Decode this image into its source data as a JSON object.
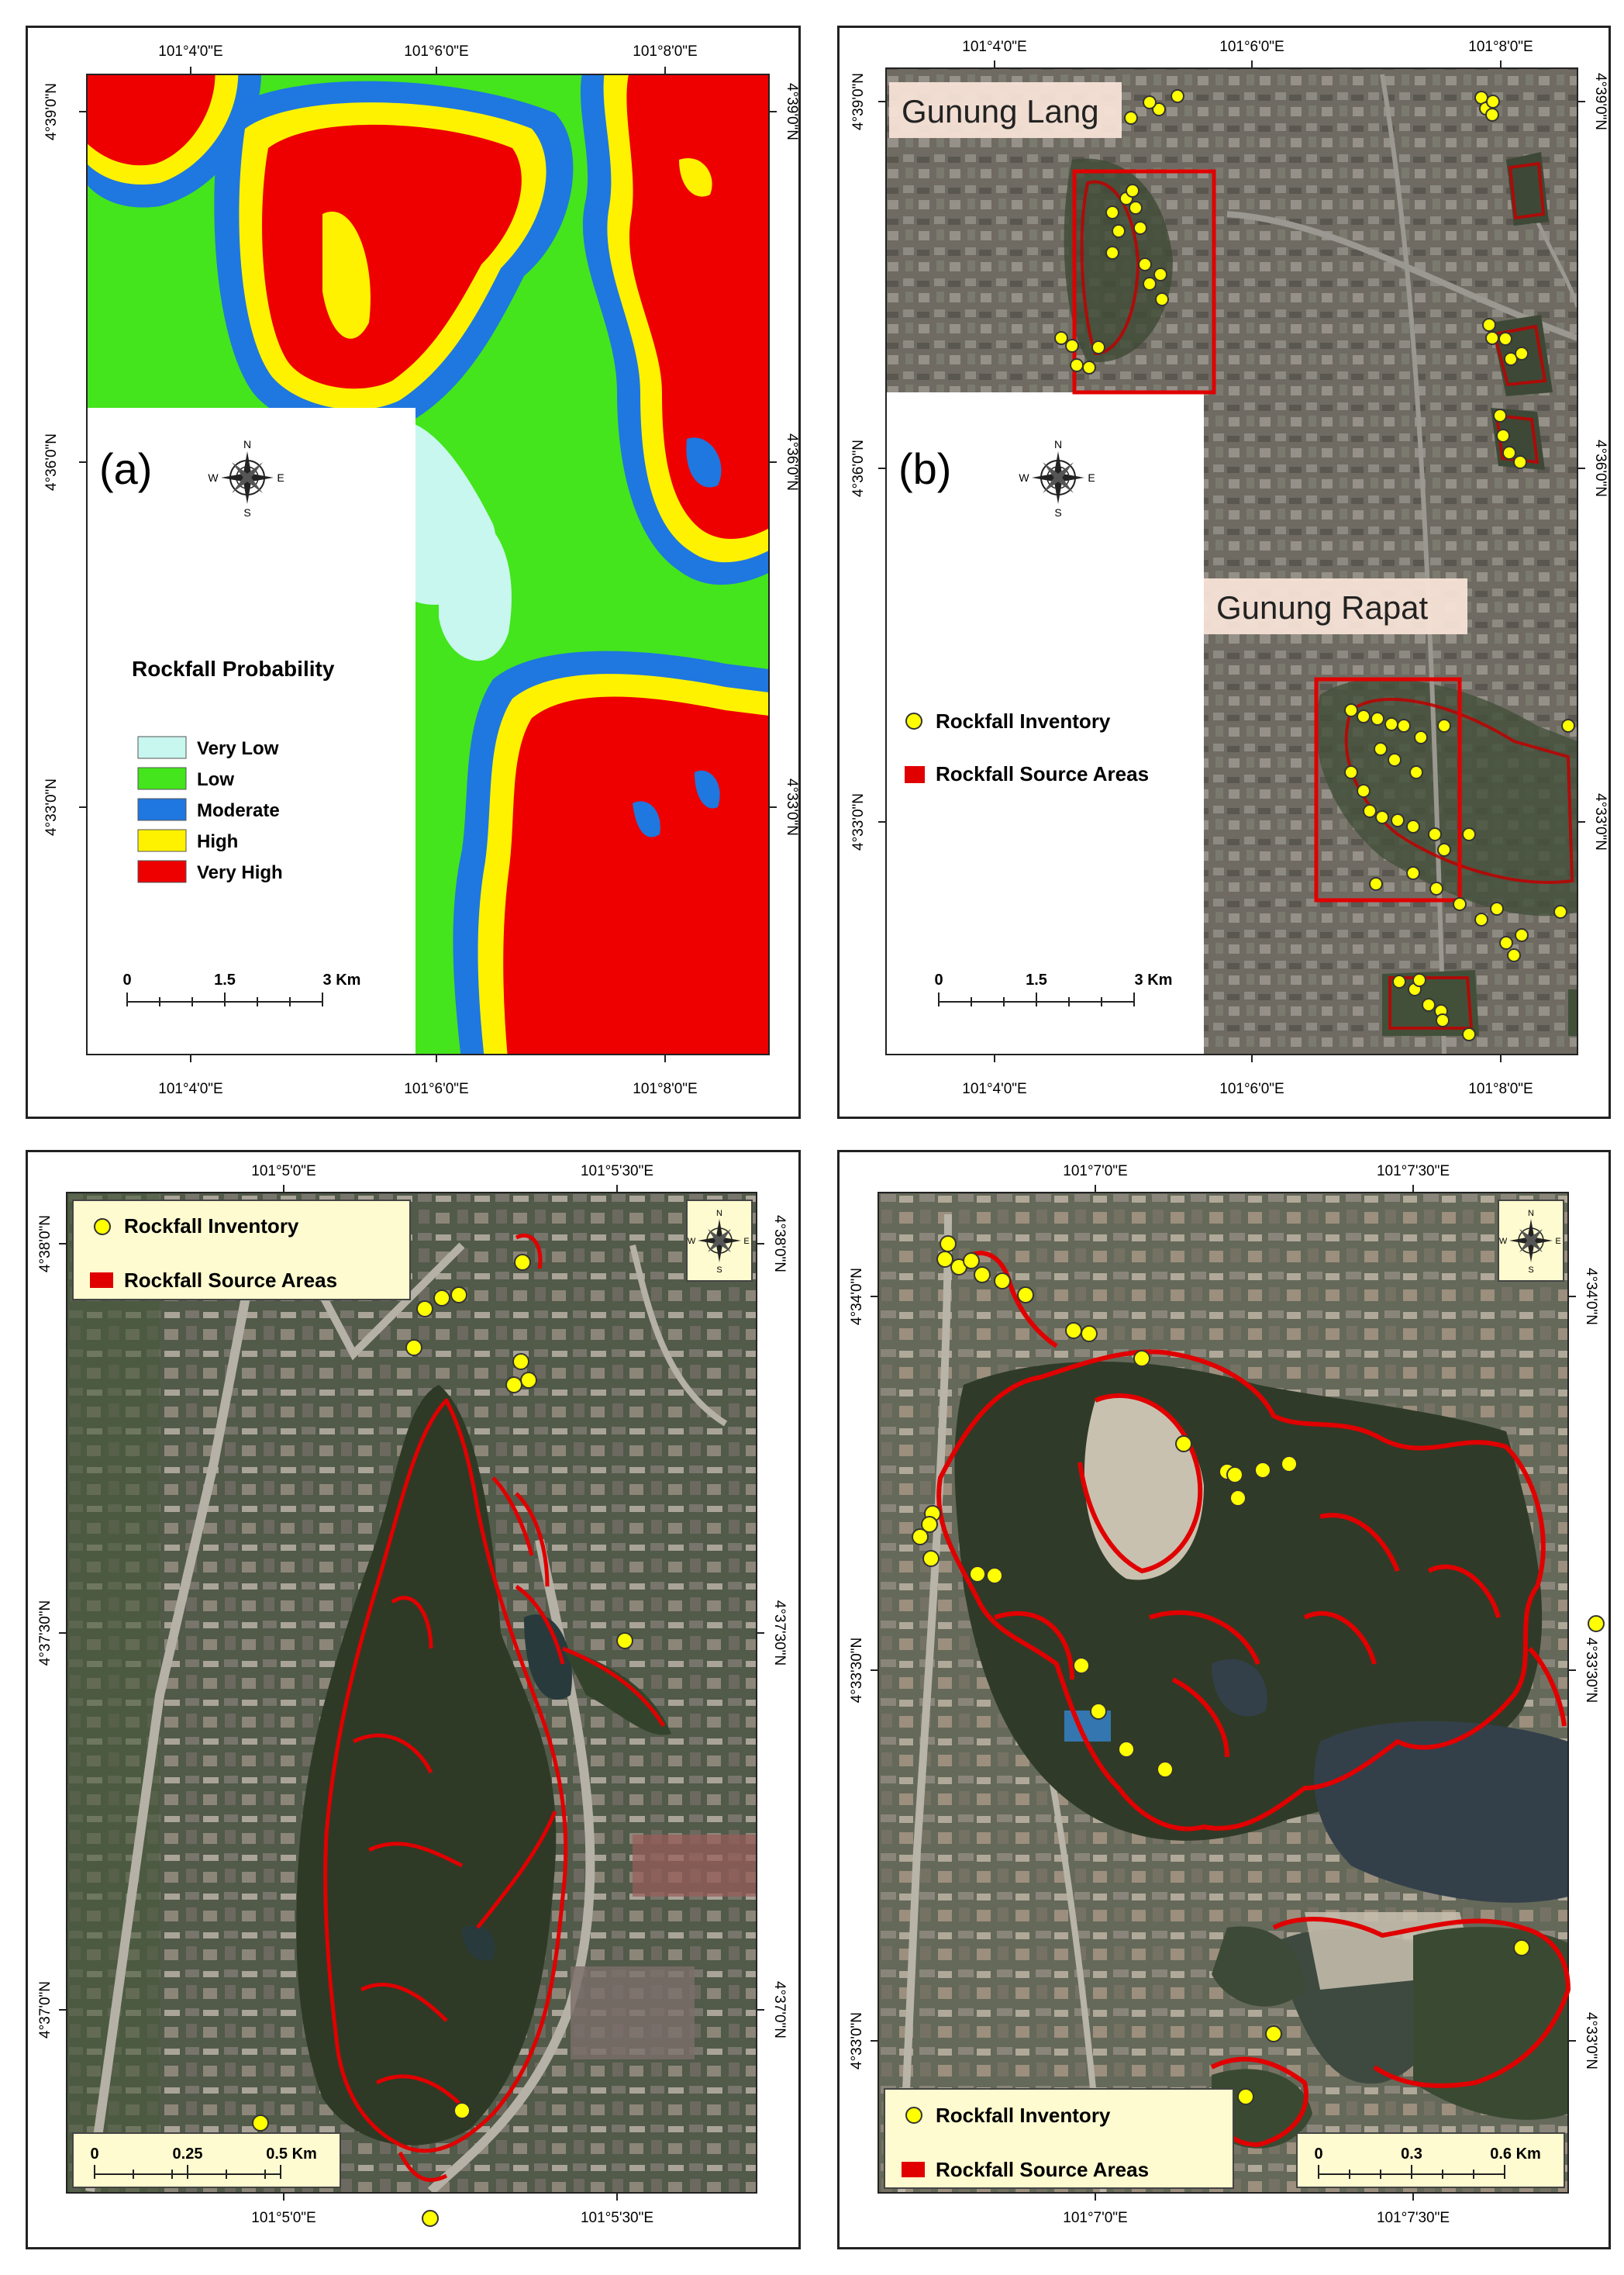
{
  "panel_a": {
    "label": "(a)",
    "legend_title": "Rockfall Probability",
    "classes": [
      {
        "name": "Very Low",
        "color": "#c7f7ee"
      },
      {
        "name": "Low",
        "color": "#44e51c"
      },
      {
        "name": "Moderate",
        "color": "#1f77e0"
      },
      {
        "name": "High",
        "color": "#fff200"
      },
      {
        "name": "Very High",
        "color": "#ee0000"
      }
    ],
    "lon_top": [
      "101°4'0\"E",
      "101°6'0\"E",
      "101°8'0\"E"
    ],
    "lon_bottom": [
      "101°4'0\"E",
      "101°6'0\"E",
      "101°8'0\"E"
    ],
    "lat_left": [
      "4°39'0\"N",
      "4°36'0\"N",
      "4°33'0\"N"
    ],
    "lat_right": [
      "4°39'0\"N",
      "4°36'0\"N",
      "4°33'0\"N"
    ],
    "scale": [
      "0",
      "1.5",
      "3 Km"
    ]
  },
  "panel_b": {
    "label": "(b)",
    "place_1": "Gunung Lang",
    "place_2": "Gunung Rapat",
    "legend_inventory": "Rockfall Inventory",
    "legend_source": "Rockfall Source Areas",
    "lon_top": [
      "101°4'0\"E",
      "101°6'0\"E",
      "101°8'0\"E"
    ],
    "lon_bottom": [
      "101°4'0\"E",
      "101°6'0\"E",
      "101°8'0\"E"
    ],
    "lat_left": [
      "4°39'0\"N",
      "4°36'0\"N",
      "4°33'0\"N"
    ],
    "lat_right": [
      "4°39'0\"N",
      "4°36'0\"N",
      "4°33'0\"N"
    ],
    "scale": [
      "0",
      "1.5",
      "3 Km"
    ]
  },
  "panel_c": {
    "legend_inventory": "Rockfall Inventory",
    "legend_source": "Rockfall Source Areas",
    "lon_top": [
      "101°5'0\"E",
      "101°5'30\"E"
    ],
    "lon_bottom": [
      "101°5'0\"E",
      "101°5'30\"E"
    ],
    "lat_left": [
      "4°38'0\"N",
      "4°37'30\"N",
      "4°37'0\"N"
    ],
    "lat_right": [
      "4°38'0\"N",
      "4°37'30\"N",
      "4°37'0\"N"
    ],
    "scale": [
      "0",
      "0.25",
      "0.5 Km"
    ]
  },
  "panel_d": {
    "legend_inventory": "Rockfall Inventory",
    "legend_source": "Rockfall Source Areas",
    "lon_top": [
      "101°7'0\"E",
      "101°7'30\"E"
    ],
    "lon_bottom": [
      "101°7'0\"E",
      "101°7'30\"E"
    ],
    "lat_left": [
      "4°34'0\"N",
      "4°33'30\"N",
      "4°33'0\"N"
    ],
    "lat_right": [
      "4°34'0\"N",
      "4°33'30\"N",
      "4°33'0\"N"
    ],
    "scale": [
      "0",
      "0.3",
      "0.6 Km"
    ]
  },
  "compass": {
    "n": "N",
    "s": "S",
    "e": "E",
    "w": "W"
  },
  "colors": {
    "inventory_point": "#ffff00",
    "source_area": "#e00000",
    "extent_box": "#e00000",
    "legend_bg_lower": "#fffbd0"
  }
}
